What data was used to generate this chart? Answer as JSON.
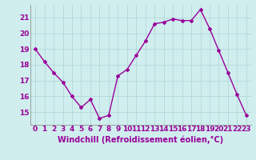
{
  "x": [
    0,
    1,
    2,
    3,
    4,
    5,
    6,
    7,
    8,
    9,
    10,
    11,
    12,
    13,
    14,
    15,
    16,
    17,
    18,
    19,
    20,
    21,
    22,
    23
  ],
  "y": [
    19.0,
    18.2,
    17.5,
    16.9,
    16.0,
    15.3,
    15.8,
    14.6,
    14.8,
    17.3,
    17.7,
    18.6,
    19.5,
    20.6,
    20.7,
    20.9,
    20.8,
    20.8,
    21.5,
    20.3,
    18.9,
    17.5,
    16.1,
    14.8
  ],
  "line_color": "#990099",
  "marker": "D",
  "marker_size": 2,
  "bg_color": "#d0eeee",
  "grid_color": "#b0d8d8",
  "xlabel": "Windchill (Refroidissement éolien,°C)",
  "xlabel_color": "#990099",
  "xlabel_fontsize": 7,
  "tick_color": "#990099",
  "tick_fontsize": 6.5,
  "ylim": [
    14.2,
    21.8
  ],
  "xlim": [
    -0.5,
    23.5
  ],
  "yticks": [
    15,
    16,
    17,
    18,
    19,
    20,
    21
  ],
  "xticks": [
    0,
    1,
    2,
    3,
    4,
    5,
    6,
    7,
    8,
    9,
    10,
    11,
    12,
    13,
    14,
    15,
    16,
    17,
    18,
    19,
    20,
    21,
    22,
    23
  ],
  "line_width": 1.0
}
